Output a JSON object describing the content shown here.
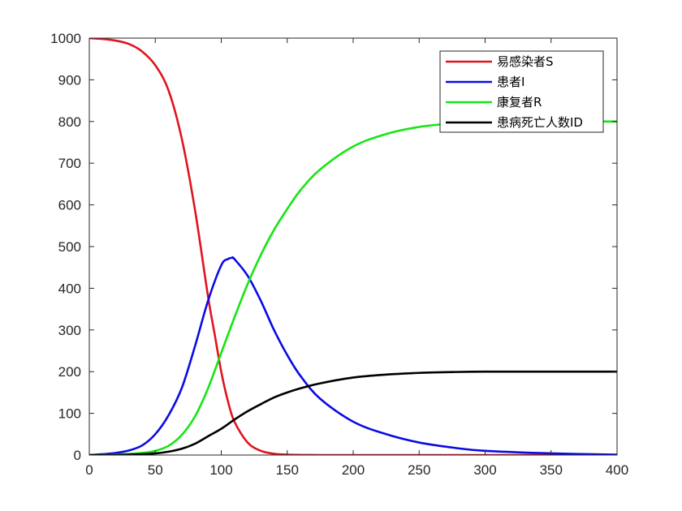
{
  "chart_data": {
    "type": "line",
    "xlim": [
      0,
      400
    ],
    "ylim": [
      0,
      1000
    ],
    "xticks": [
      0,
      50,
      100,
      150,
      200,
      250,
      300,
      350,
      400
    ],
    "yticks": [
      0,
      100,
      200,
      300,
      400,
      500,
      600,
      700,
      800,
      900,
      1000
    ],
    "grid": false,
    "legend_position": "top-right",
    "series": [
      {
        "name": "易感染者S",
        "color": "#e0141e",
        "x": [
          0,
          10,
          20,
          30,
          40,
          50,
          60,
          70,
          80,
          90,
          95,
          100,
          105,
          110,
          120,
          130,
          140,
          150,
          175,
          200,
          250,
          300,
          350,
          400
        ],
        "y": [
          1000,
          998,
          994,
          986,
          968,
          935,
          875,
          760,
          590,
          380,
          290,
          200,
          130,
          80,
          30,
          10,
          3,
          1,
          0,
          0,
          0,
          0,
          0,
          0
        ]
      },
      {
        "name": "患者I",
        "color": "#0a0ae6",
        "x": [
          0,
          10,
          20,
          30,
          40,
          50,
          60,
          70,
          80,
          90,
          100,
          105,
          108,
          110,
          120,
          130,
          140,
          150,
          160,
          175,
          200,
          225,
          250,
          275,
          300,
          350,
          400
        ],
        "y": [
          0,
          2,
          5,
          11,
          23,
          50,
          95,
          160,
          260,
          370,
          455,
          470,
          473,
          470,
          430,
          370,
          300,
          240,
          190,
          135,
          80,
          50,
          30,
          18,
          10,
          4,
          1
        ]
      },
      {
        "name": "康复者R",
        "color": "#14e614",
        "x": [
          0,
          20,
          40,
          50,
          60,
          70,
          80,
          90,
          100,
          110,
          120,
          130,
          140,
          150,
          160,
          175,
          200,
          225,
          250,
          275,
          300,
          350,
          400
        ],
        "y": [
          0,
          1,
          5,
          10,
          22,
          48,
          92,
          160,
          245,
          330,
          410,
          480,
          540,
          590,
          635,
          685,
          740,
          770,
          787,
          795,
          798,
          800,
          800
        ]
      },
      {
        "name": "患病死亡人数ID",
        "color": "#000000",
        "x": [
          0,
          20,
          40,
          50,
          60,
          70,
          80,
          90,
          100,
          110,
          120,
          130,
          140,
          150,
          160,
          175,
          200,
          225,
          250,
          275,
          300,
          350,
          400
        ],
        "y": [
          0,
          0,
          2,
          4,
          8,
          15,
          27,
          45,
          63,
          85,
          105,
          122,
          138,
          150,
          160,
          172,
          186,
          193,
          197,
          199,
          200,
          200,
          200
        ]
      }
    ]
  }
}
